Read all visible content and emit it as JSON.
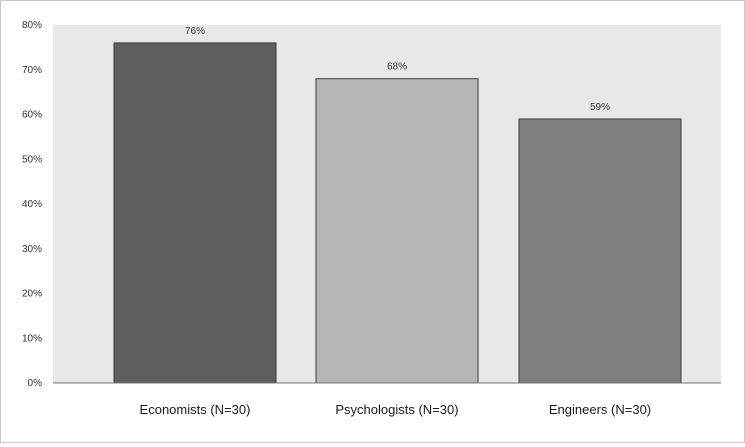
{
  "chart_data": {
    "type": "bar",
    "categories": [
      "Economists (N=30)",
      "Psychologists (N=30)",
      "Engineers (N=30)"
    ],
    "values": [
      76,
      68,
      59
    ],
    "value_labels": [
      "76%",
      "68%",
      "59%"
    ],
    "ylim": [
      0,
      80
    ],
    "yticks": [
      0,
      10,
      20,
      30,
      40,
      50,
      60,
      70,
      80
    ],
    "ytick_labels": [
      "0%",
      "10%",
      "20%",
      "30%",
      "40%",
      "50%",
      "60%",
      "70%",
      "80%"
    ],
    "title": "",
    "xlabel": "",
    "ylabel": "",
    "grid": false,
    "legend": "none",
    "bar_colors": [
      "#5f5f5f",
      "#b5b5b5",
      "#7f7f7f"
    ],
    "plot_background": "#e8e8e8"
  }
}
